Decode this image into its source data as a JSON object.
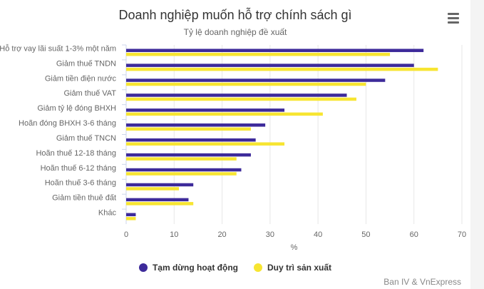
{
  "chart_data": {
    "type": "bar",
    "orientation": "horizontal",
    "title": "Doanh nghiệp muốn hỗ trợ chính sách gì",
    "subtitle": "Tỷ lệ doanh nghiệp đề xuất",
    "xlabel": "%",
    "ylabel": "",
    "xlim": [
      0,
      70
    ],
    "ticks": [
      0,
      10,
      20,
      30,
      40,
      50,
      60,
      70
    ],
    "grid": true,
    "legend_position": "bottom",
    "categories": [
      "Hỗ trợ vay lãi suất 1-3% một năm",
      "Giảm thuế TNDN",
      "Giảm tiền điện nước",
      "Giảm thuế VAT",
      "Giảm tỷ lệ đóng BHXH",
      "Hoãn đóng BHXH 3-6 tháng",
      "Giảm thuế TNCN",
      "Hoãn thuế 12-18 tháng",
      "Hoãn thuế 6-12 tháng",
      "Hoãn thuế 3-6 tháng",
      "Giảm tiền thuê đất",
      "Khác"
    ],
    "series": [
      {
        "name": "Tạm dừng hoạt động",
        "color": "#3d2a9a",
        "values": [
          62,
          60,
          54,
          46,
          33,
          29,
          27,
          26,
          24,
          14,
          13,
          2
        ]
      },
      {
        "name": "Duy trì sản xuất",
        "color": "#f7e531",
        "values": [
          55,
          65,
          50,
          48,
          41,
          26,
          33,
          23,
          23,
          11,
          14,
          2
        ]
      }
    ]
  },
  "credits": "Ban IV & VnExpress",
  "menu": {
    "icon": "hamburger-menu-icon"
  }
}
